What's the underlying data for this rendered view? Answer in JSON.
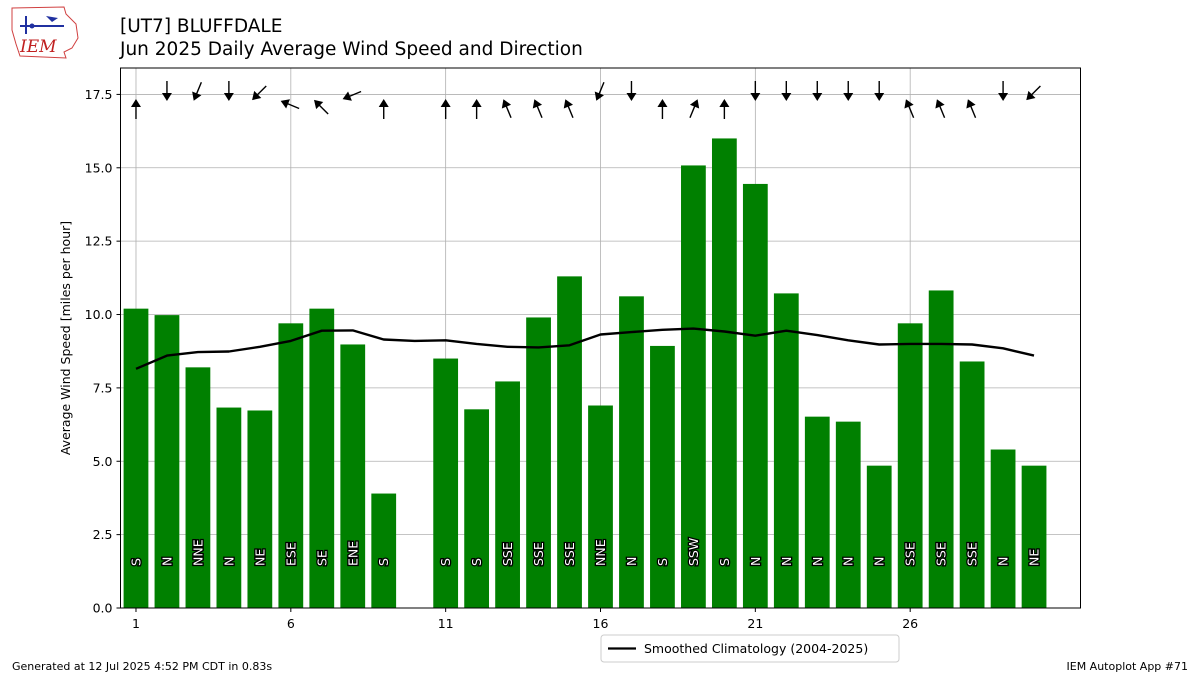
{
  "header": {
    "station": "[UT7] BLUFFDALE",
    "subtitle": "Jun 2025 Daily Average Wind Speed and Direction"
  },
  "logo": {
    "text": "IEM",
    "icon": "iem-logo-icon"
  },
  "footer": {
    "generated": "Generated at 12 Jul 2025 4:52 PM CDT in 0.83s",
    "app": "IEM Autoplot App #71"
  },
  "colors": {
    "bar": "#008000",
    "line": "#000000",
    "grid": "#b0b0b0"
  },
  "chart_data": {
    "type": "bar",
    "title": "[UT7] BLUFFDALE",
    "subtitle": "Jun 2025 Daily Average Wind Speed and Direction",
    "ylabel": "Average Wind Speed [miles per hour]",
    "xlabel": "",
    "xlim": [
      0.5,
      31.5
    ],
    "ylim": [
      0,
      18.4
    ],
    "xticks": [
      1,
      6,
      11,
      16,
      21,
      26
    ],
    "yticks": [
      0.0,
      2.5,
      5.0,
      7.5,
      10.0,
      12.5,
      15.0,
      17.5
    ],
    "grid": true,
    "legend_position": "below-center",
    "days": [
      1,
      2,
      3,
      4,
      5,
      6,
      7,
      8,
      9,
      11,
      12,
      13,
      14,
      15,
      16,
      17,
      18,
      19,
      20,
      21,
      22,
      23,
      24,
      25,
      26,
      27,
      28,
      29,
      30
    ],
    "values": [
      10.2,
      9.98,
      8.2,
      6.83,
      6.73,
      9.7,
      10.2,
      8.98,
      3.9,
      8.5,
      6.77,
      7.72,
      9.9,
      11.3,
      6.9,
      10.62,
      8.93,
      15.08,
      16.0,
      14.45,
      10.72,
      6.52,
      6.35,
      4.85,
      9.7,
      10.82,
      8.4,
      5.4,
      4.85
    ],
    "directions": [
      "S",
      "N",
      "NNE",
      "N",
      "NE",
      "ESE",
      "SE",
      "ENE",
      "S",
      "S",
      "S",
      "SSE",
      "SSE",
      "SSE",
      "NNE",
      "N",
      "S",
      "SSW",
      "S",
      "N",
      "N",
      "N",
      "N",
      "N",
      "SSE",
      "SSE",
      "SSE",
      "N",
      "NE"
    ],
    "series": [
      {
        "name": "Smoothed Climatology (2004-2025)",
        "type": "line",
        "x": [
          1,
          2,
          3,
          4,
          5,
          6,
          7,
          8,
          9,
          10,
          11,
          12,
          13,
          14,
          15,
          16,
          17,
          18,
          19,
          20,
          21,
          22,
          23,
          24,
          25,
          26,
          27,
          28,
          29,
          30
        ],
        "values": [
          8.15,
          8.6,
          8.72,
          8.74,
          8.9,
          9.1,
          9.45,
          9.46,
          9.15,
          9.1,
          9.12,
          9.0,
          8.9,
          8.88,
          8.95,
          9.32,
          9.4,
          9.48,
          9.52,
          9.42,
          9.28,
          9.45,
          9.3,
          9.12,
          8.98,
          9.0,
          9.0,
          8.98,
          8.85,
          8.6
        ]
      }
    ]
  }
}
